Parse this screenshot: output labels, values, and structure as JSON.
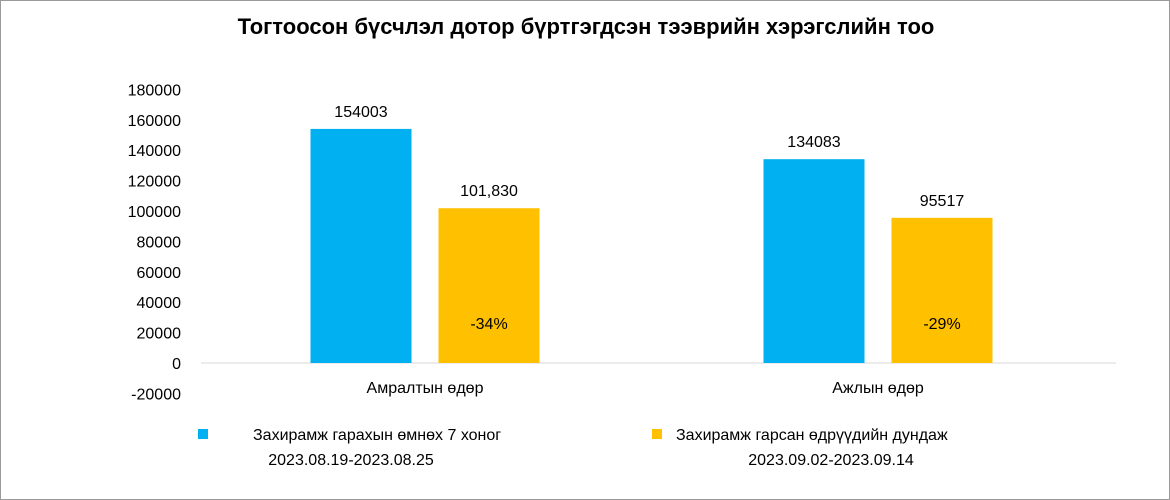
{
  "chart_data": {
    "type": "bar",
    "title": "Тогтоосон бүсчлэл дотор бүртгэгдсэн тээврийн хэрэгслийн тоо",
    "categories": [
      "Амралтын өдөр",
      "Ажлын өдөр"
    ],
    "series": [
      {
        "name": "Захирамж гарахын өмнөх 7 хоног",
        "period": "2023.08.19-2023.08.25",
        "color": "#00B0F0",
        "values": [
          154003,
          134083
        ],
        "labels": [
          "154003",
          "134083"
        ]
      },
      {
        "name": "Захирамж гарсан өдрүүдийн дундаж",
        "period": "2023.09.02-2023.09.14",
        "color": "#FFC000",
        "values": [
          101830,
          95517
        ],
        "labels": [
          "101,830",
          "95517"
        ]
      }
    ],
    "annotations": [
      "-34%",
      "-29%"
    ],
    "yticks": [
      "180000",
      "160000",
      "140000",
      "120000",
      "100000",
      "80000",
      "60000",
      "40000",
      "20000",
      "0",
      "-20000"
    ],
    "ylim": [
      -20000,
      180000
    ],
    "grid": false,
    "legend_position": "bottom"
  }
}
